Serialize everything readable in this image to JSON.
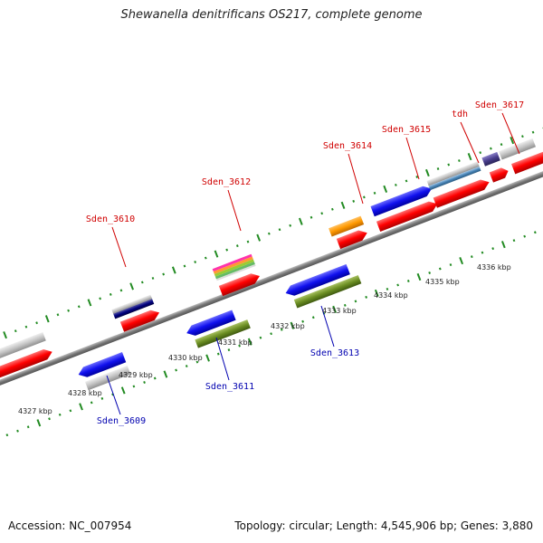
{
  "title": "Shewanella denitrificans OS217, complete genome",
  "footer": {
    "accession": "Accession: NC_007954",
    "summary": "Topology: circular; Length: 4,545,906 bp; Genes: 3,880"
  },
  "kbp_labels": [
    "4327 kbp",
    "4328 kbp",
    "4329 kbp",
    "4330 kbp",
    "4331 kbp",
    "4332 kbp",
    "4333 kbp",
    "4334 kbp",
    "4335 kbp",
    "4336 kbp"
  ],
  "genes_top": [
    "Sden_3610",
    "Sden_3612",
    "Sden_3614",
    "Sden_3615",
    "tdh",
    "Sden_3617"
  ],
  "genes_bottom": [
    "Sden_3609",
    "Sden_3611",
    "Sden_3613"
  ],
  "colors": {
    "red": "#ff0000",
    "blue": "#1010ee",
    "gray": "#c0c0c0",
    "olive": "#6b8e23",
    "orange": "#ff9900",
    "navy": "#000080",
    "steelblue": "#4682b4",
    "purple": "#483d8b",
    "top_label": "#d00000",
    "bottom_label": "#0000b0"
  }
}
